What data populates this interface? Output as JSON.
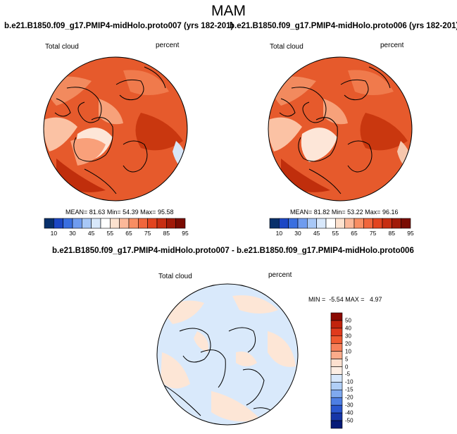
{
  "title": "MAM",
  "panels": [
    {
      "title": "b.e21.B1850.f09_g17.PMIP4-midHolo.proto007 (yrs 182-201)",
      "variable": "Total cloud",
      "units": "percent",
      "stats": {
        "mean_label": "MEAN=",
        "mean": "81.63",
        "min_label": "Min=",
        "min": "54.39",
        "max_label": "Max=",
        "max": "95.58"
      }
    },
    {
      "title": "b.e21.B1850.f09_g17.PMIP4-midHolo.proto006 (yrs 182-201)",
      "variable": "Total cloud",
      "units": "percent",
      "stats": {
        "mean_label": "MEAN=",
        "mean": "81.82",
        "min_label": "Min=",
        "min": "53.22",
        "max_label": "Max=",
        "max": "96.16"
      }
    }
  ],
  "diff_panel": {
    "title": "b.e21.B1850.f09_g17.PMIP4-midHolo.proto007 - b.e21.B1850.f09_g17.PMIP4-midHolo.proto006",
    "variable": "Total cloud",
    "units": "percent",
    "stats": "MIN =  -5.54 MAX =   4.97"
  },
  "colorbar_abs": {
    "labels": [
      "10",
      "30",
      "45",
      "55",
      "65",
      "75",
      "85",
      "95"
    ],
    "colors": [
      "#08306b",
      "#1c47c4",
      "#3a6fe0",
      "#6f9cef",
      "#a8c8f7",
      "#d8e8fb",
      "#ffffff",
      "#fde2cf",
      "#fbb899",
      "#f88e63",
      "#f0663c",
      "#e2441f",
      "#c72e12",
      "#a11a08",
      "#7a0c02"
    ]
  },
  "colorbar_diff": {
    "labels": [
      "50",
      "40",
      "30",
      "20",
      "10",
      "5",
      "0",
      "-5",
      "-10",
      "-15",
      "-20",
      "-30",
      "-40",
      "-50"
    ],
    "colors": [
      "#8b0a03",
      "#c2230c",
      "#e03a1c",
      "#f05a30",
      "#f7805a",
      "#fbab8a",
      "#fde0cf",
      "#fdeee4",
      "#d7e7fb",
      "#b0cef6",
      "#7fa9ef",
      "#4e7fe4",
      "#2a57cf",
      "#1636a8",
      "#061b78"
    ]
  },
  "colors": {
    "map_base_abs": "#e65a2c",
    "map_base_diff": "#d9e9fb",
    "coast": "#000000"
  }
}
